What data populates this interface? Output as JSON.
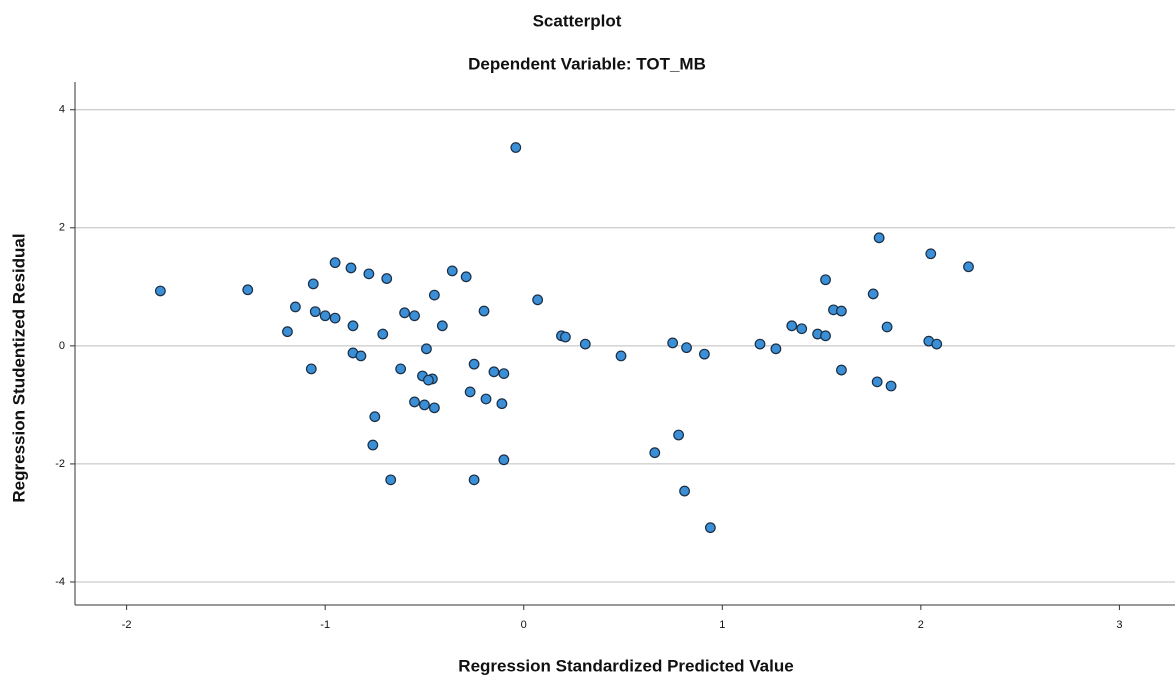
{
  "chart_data": {
    "type": "scatter",
    "title": "Scatterplot",
    "subtitle": "Dependent Variable: TOT_MB",
    "x_label": "Regression Standardized Predicted Value",
    "y_label": "Regression Studentized Residual",
    "xlim": [
      -2.26,
      3.28
    ],
    "ylim": [
      -4.39,
      4.47
    ],
    "xticks": [
      -2,
      -1,
      0,
      1,
      2,
      3
    ],
    "yticks": [
      -4,
      -2,
      0,
      2,
      4
    ],
    "grid": true,
    "color": "#3a8fd6",
    "x": [
      -1.83,
      -1.39,
      -0.04,
      -1.15,
      -1.06,
      -1.19,
      -1.07,
      -1.05,
      -1.0,
      -0.95,
      -0.95,
      -0.87,
      -0.86,
      -0.86,
      -0.82,
      -0.78,
      -0.69,
      -0.71,
      -0.75,
      -0.76,
      -0.67,
      -0.62,
      -0.6,
      -0.55,
      -0.55,
      -0.5,
      -0.45,
      -0.51,
      -0.49,
      -0.46,
      -0.48,
      -0.45,
      -0.41,
      -0.36,
      -0.29,
      -0.2,
      -0.25,
      -0.27,
      -0.19,
      -0.15,
      -0.1,
      -0.11,
      -0.1,
      -0.25,
      0.07,
      0.19,
      0.21,
      0.31,
      0.49,
      0.66,
      0.75,
      0.78,
      0.82,
      0.81,
      0.91,
      0.94,
      1.19,
      1.27,
      1.35,
      1.4,
      1.48,
      1.52,
      1.52,
      1.56,
      1.6,
      1.6,
      1.76,
      1.78,
      1.79,
      1.83,
      1.85,
      2.05,
      2.04,
      2.08,
      2.24
    ],
    "values": [
      0.93,
      0.95,
      3.36,
      0.66,
      1.05,
      0.24,
      -0.39,
      0.58,
      0.51,
      0.47,
      1.41,
      1.32,
      0.34,
      -0.12,
      -0.17,
      1.22,
      1.14,
      0.2,
      -1.2,
      -1.68,
      -2.27,
      -0.39,
      0.56,
      0.51,
      -0.95,
      -1.0,
      -1.05,
      -0.51,
      -0.05,
      -0.56,
      -0.58,
      0.86,
      0.34,
      1.27,
      1.17,
      0.59,
      -0.31,
      -0.78,
      -0.9,
      -0.44,
      -0.47,
      -0.98,
      -1.93,
      -2.27,
      0.78,
      0.17,
      0.15,
      0.03,
      -0.17,
      -1.81,
      0.05,
      -1.51,
      -0.03,
      -2.46,
      -0.14,
      -3.08,
      0.03,
      -0.05,
      0.34,
      0.29,
      0.2,
      0.17,
      1.12,
      0.61,
      0.59,
      -0.41,
      0.88,
      -0.61,
      1.83,
      0.32,
      -0.68,
      1.56,
      0.08,
      0.03,
      1.34
    ]
  }
}
